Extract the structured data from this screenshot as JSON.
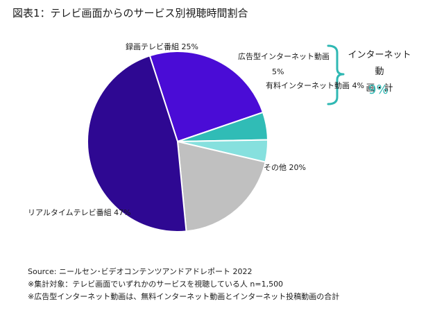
{
  "title": "図表1：テレビ画面からのサービス別視聴時間割合",
  "chart_data": {
    "type": "pie",
    "categories": [
      "録画テレビ番組",
      "広告型インターネット動画",
      "有料インターネット動画",
      "その他",
      "リアルタイムテレビ番組"
    ],
    "values": [
      25,
      5,
      4,
      20,
      47
    ],
    "unit": "%",
    "colors": [
      "#4a0cd6",
      "#30bcb6",
      "#86e0de",
      "#c0c0c0",
      "#2e0892"
    ],
    "labels": [
      {
        "name": "録画テレビ番組",
        "value": "25%"
      },
      {
        "name": "広告型インターネット動画",
        "value": "5%"
      },
      {
        "name": "有料インターネット動画",
        "value": "4%"
      },
      {
        "name": "その他",
        "value": "20%"
      },
      {
        "name": "リアルタイムテレビ番組",
        "value": "47%"
      }
    ],
    "group_annotation": {
      "label_line1": "インターネット動",
      "label_line2": "画・計",
      "value": "9%",
      "color": "#2fb8b3"
    }
  },
  "notes": [
    "Source: ニールセン･ビデオコンテンツアンドアドレポート 2022",
    "※集計対象：テレビ画面でいずれかのサービスを視聴している人 n=1,500",
    "※広告型インターネット動画は、無料インターネット動画とインターネット投稿動画の合計"
  ]
}
